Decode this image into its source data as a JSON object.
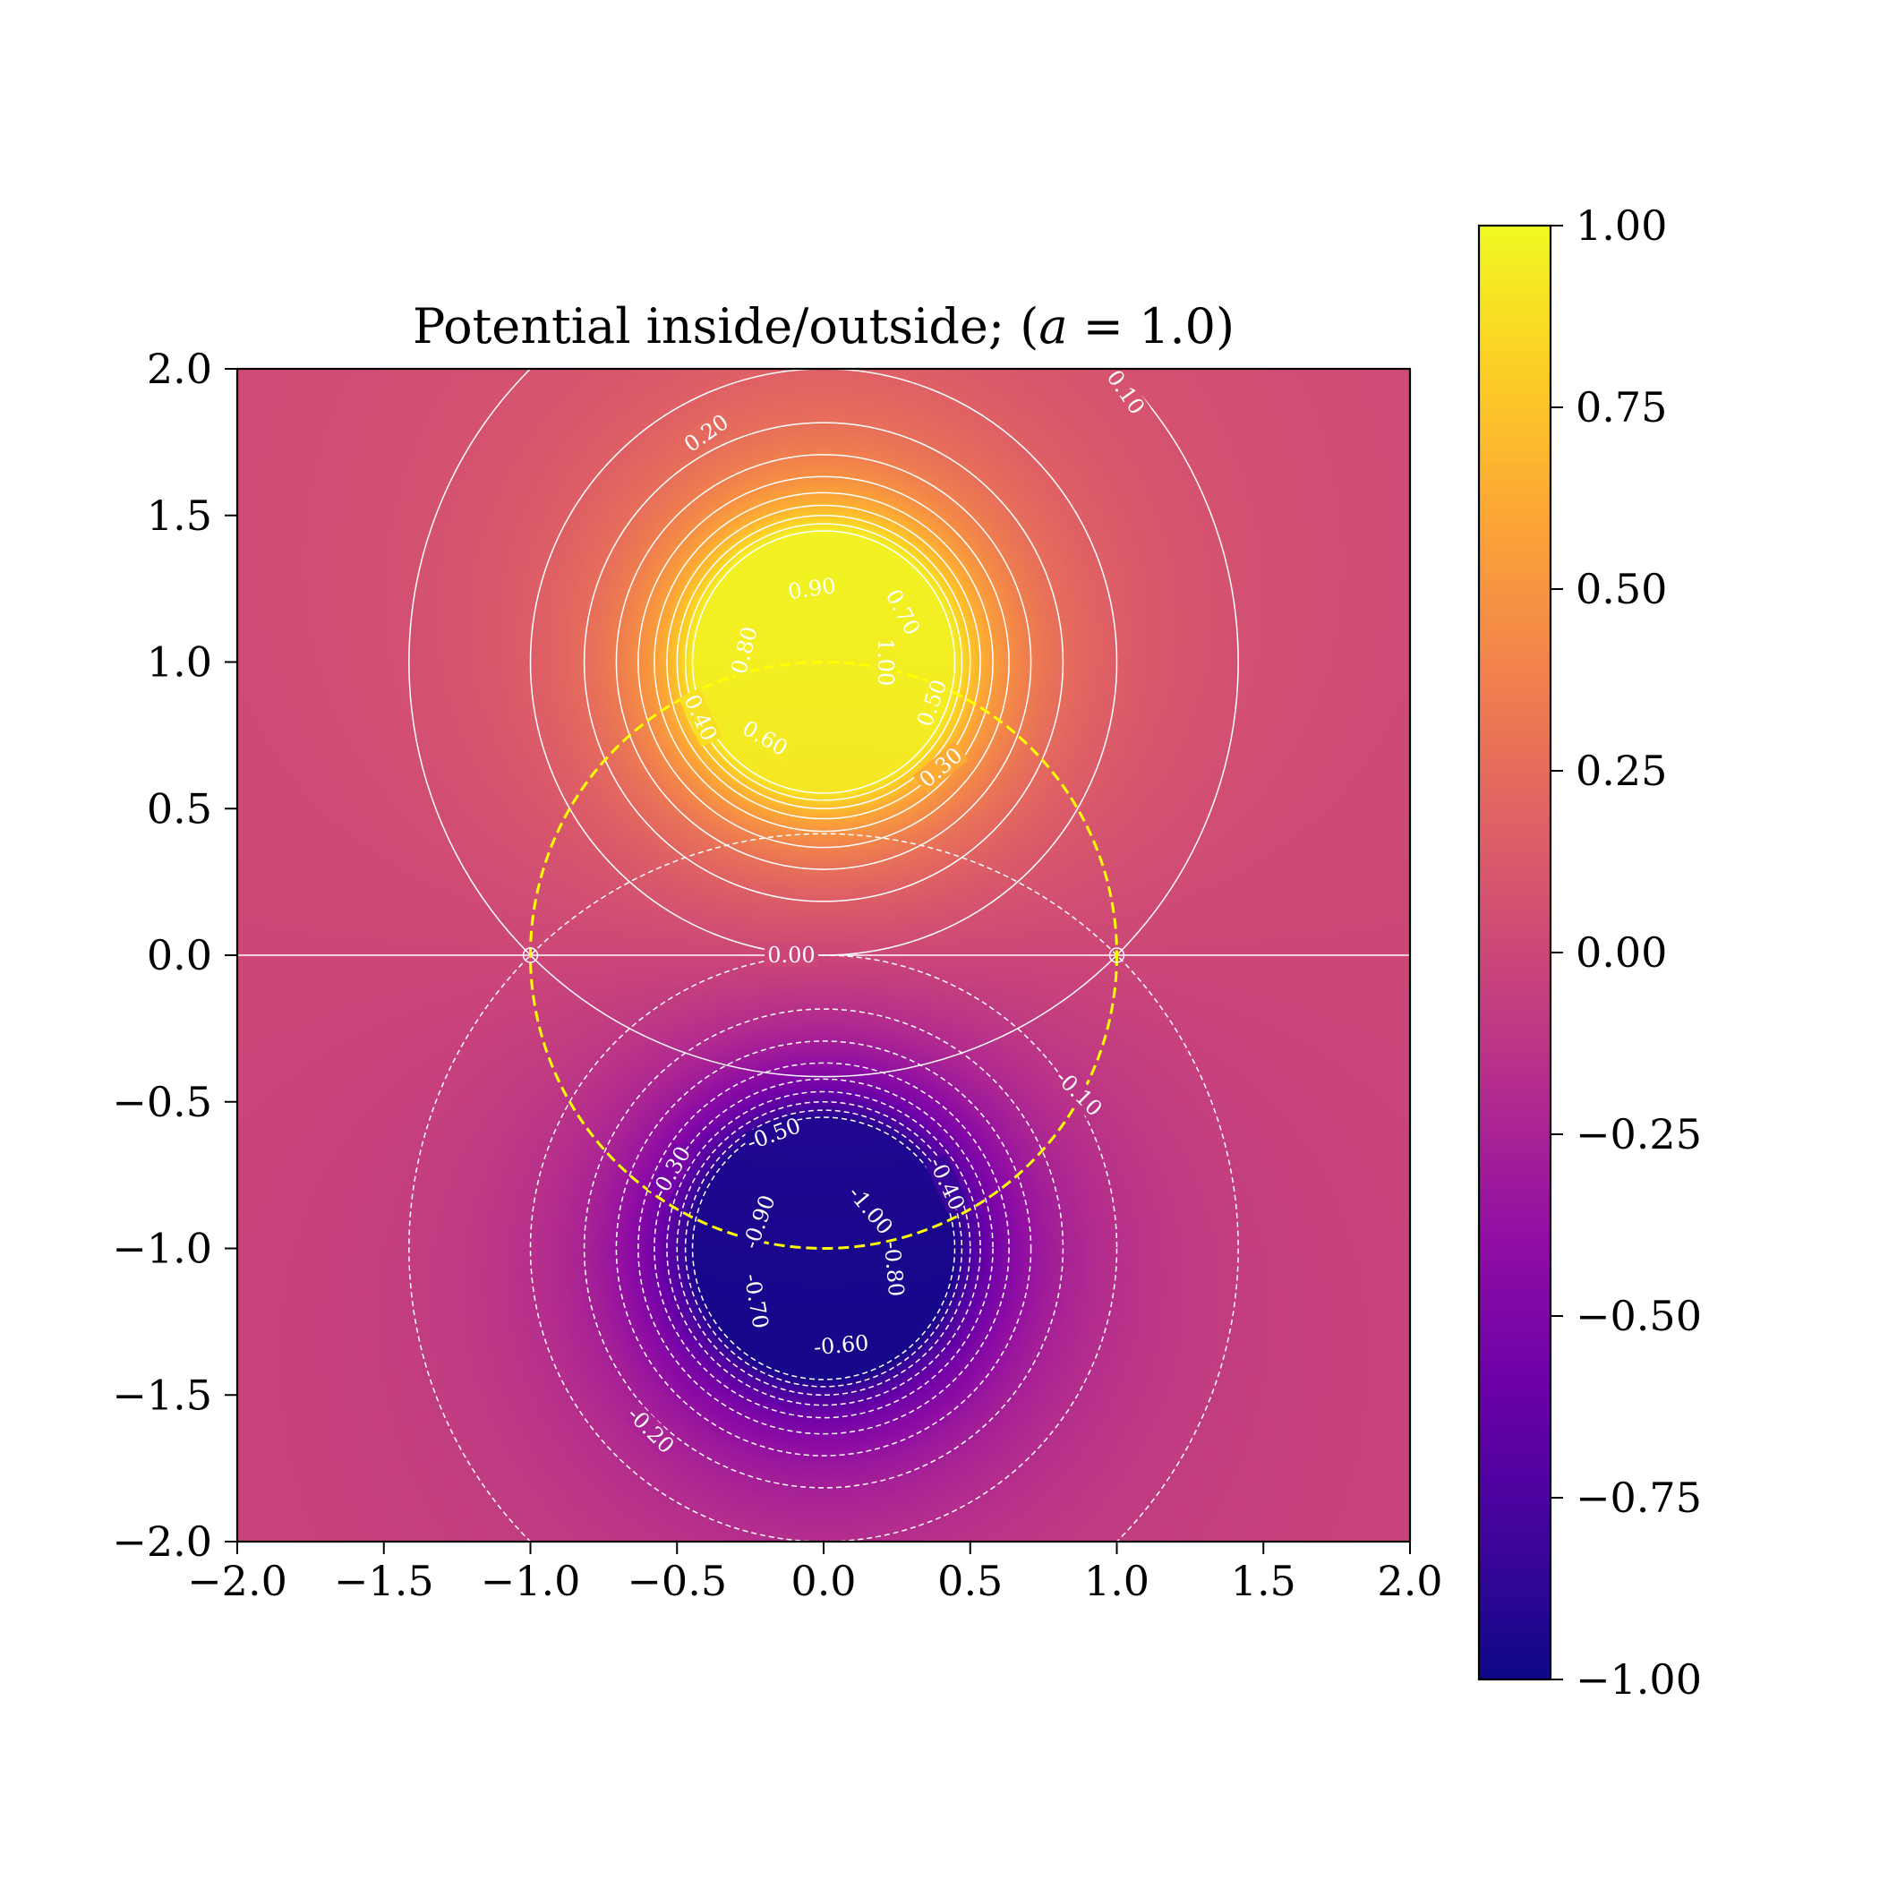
{
  "chart_data": {
    "type": "heatmap",
    "title": "Potential inside/outside; (a = 1.0)",
    "title_parts": {
      "prefix": "Potential inside/outside; (",
      "symbol": "a",
      "suffix": " = 1.0)"
    },
    "xlabel": "",
    "ylabel": "",
    "xlim": [
      -2.0,
      2.0
    ],
    "ylim": [
      -2.0,
      2.0
    ],
    "x_ticks": [
      -2.0,
      -1.5,
      -1.0,
      -0.5,
      0.0,
      0.5,
      1.0,
      1.5,
      2.0
    ],
    "y_ticks": [
      -2.0,
      -1.5,
      -1.0,
      -0.5,
      0.0,
      0.5,
      1.0,
      1.5,
      2.0
    ],
    "x_tick_labels": [
      "−2.0",
      "−1.5",
      "−1.0",
      "−0.5",
      "0.0",
      "0.5",
      "1.0",
      "1.5",
      "2.0"
    ],
    "y_tick_labels": [
      "−2.0",
      "−1.5",
      "−1.0",
      "−0.5",
      "0.0",
      "0.5",
      "1.0",
      "1.5",
      "2.0"
    ],
    "colormap": "plasma",
    "value_range": [
      -1.0,
      1.0
    ],
    "colorbar_ticks": [
      1.0,
      0.75,
      0.5,
      0.25,
      0.0,
      -0.25,
      -0.5,
      -0.75,
      -1.0
    ],
    "colorbar_tick_labels": [
      "1.00",
      "0.75",
      "0.50",
      "0.25",
      "0.00",
      "−0.25",
      "−0.50",
      "−0.75",
      "−1.00"
    ],
    "sources": [
      {
        "x": 0.0,
        "y": 1.0,
        "value": 1.0
      },
      {
        "x": 0.0,
        "y": -1.0,
        "value": -1.0
      }
    ],
    "boundary_circle": {
      "center": [
        0.0,
        0.0
      ],
      "radius": 1.0,
      "style": "dashed",
      "color": "#ffff00"
    },
    "markers": [
      {
        "x": -1.0,
        "y": 0.0
      },
      {
        "x": 1.0,
        "y": 0.0
      }
    ],
    "contour_levels_positive": [
      0.1,
      0.2,
      0.3,
      0.4,
      0.5,
      0.6,
      0.7,
      0.8,
      0.9,
      1.0
    ],
    "contour_levels_negative": [
      -0.1,
      -0.2,
      -0.3,
      -0.4,
      -0.5,
      -0.6,
      -0.7,
      -0.8,
      -0.9,
      -1.0
    ],
    "contour_zero": 0.0,
    "contour_labels": [
      {
        "text": "0.10",
        "x": 1.03,
        "y": 1.92,
        "angle": 55
      },
      {
        "text": "0.20",
        "x": -0.4,
        "y": 1.78,
        "angle": -35
      },
      {
        "text": "0.90",
        "x": -0.04,
        "y": 1.25,
        "angle": -8
      },
      {
        "text": "0.70",
        "x": 0.27,
        "y": 1.17,
        "angle": 62
      },
      {
        "text": "0.80",
        "x": -0.27,
        "y": 1.04,
        "angle": -75
      },
      {
        "text": "1.00",
        "x": 0.21,
        "y": 1.0,
        "angle": 90
      },
      {
        "text": "0.40",
        "x": -0.42,
        "y": 0.81,
        "angle": 65
      },
      {
        "text": "0.60",
        "x": -0.2,
        "y": 0.74,
        "angle": 30
      },
      {
        "text": "0.50",
        "x": 0.37,
        "y": 0.86,
        "angle": -70
      },
      {
        "text": "0.30",
        "x": 0.4,
        "y": 0.64,
        "angle": -40
      },
      {
        "text": "0.00",
        "x": -0.11,
        "y": 0.0,
        "angle": 0
      },
      {
        "text": "-0.10",
        "x": 0.87,
        "y": -0.47,
        "angle": 45
      },
      {
        "text": "-0.50",
        "x": -0.17,
        "y": -0.61,
        "angle": -20
      },
      {
        "text": "-0.30",
        "x": -0.52,
        "y": -0.74,
        "angle": -60
      },
      {
        "text": "-0.40",
        "x": 0.42,
        "y": -0.78,
        "angle": 65
      },
      {
        "text": "-1.00",
        "x": 0.16,
        "y": -0.87,
        "angle": 50
      },
      {
        "text": "-0.90",
        "x": -0.22,
        "y": -0.91,
        "angle": -70
      },
      {
        "text": "-0.80",
        "x": 0.24,
        "y": -1.07,
        "angle": 85
      },
      {
        "text": "-0.70",
        "x": -0.23,
        "y": -1.18,
        "angle": 80
      },
      {
        "text": "-0.60",
        "x": 0.06,
        "y": -1.33,
        "angle": -5
      },
      {
        "text": "-0.20",
        "x": -0.59,
        "y": -1.62,
        "angle": 45
      }
    ]
  }
}
